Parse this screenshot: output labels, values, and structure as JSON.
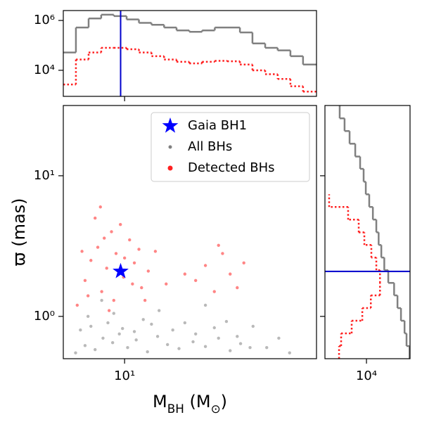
{
  "chart_data": [
    {
      "type": "scatter",
      "xlabel": "M_BH (M_⊙)",
      "ylabel": "ϖ (mas)",
      "xscale": "log",
      "yscale": "log",
      "xlim": [
        5.5,
        65
      ],
      "ylim": [
        0.5,
        31.6
      ],
      "xticks": [
        {
          "value": 10,
          "label": "10¹"
        }
      ],
      "yticks": [
        {
          "value": 1,
          "label": "10⁰"
        },
        {
          "value": 10,
          "label": "10¹"
        }
      ],
      "legend": "upper right",
      "series": [
        {
          "name": "Gaia BH1",
          "color": "#0000ff",
          "marker": "star",
          "x": [
            9.62
          ],
          "y": [
            2.09
          ]
        },
        {
          "name": "All BHs",
          "color": "#808080",
          "marker": "dot",
          "x": [
            6.2,
            6.8,
            7.5,
            8.1,
            8.9,
            9.5,
            10.3,
            11.2,
            12.5,
            13.8,
            15.2,
            17.0,
            19.5,
            22.0,
            25.0,
            28.0,
            31.0,
            34.0,
            6.5,
            7.2,
            8.5,
            9.8,
            11.0,
            13.0,
            16.0,
            20.0,
            24.0,
            30.0,
            40.0,
            50.0,
            7.0,
            9.0,
            12.0,
            18.0,
            27.0,
            45.0,
            8.0,
            14.0,
            22.0,
            35.0
          ],
          "y": [
            0.55,
            0.62,
            0.58,
            0.7,
            0.65,
            0.75,
            0.6,
            0.68,
            0.56,
            0.72,
            0.63,
            0.59,
            0.66,
            0.61,
            0.7,
            0.57,
            0.64,
            0.6,
            0.8,
            0.85,
            0.9,
            0.82,
            0.78,
            0.88,
            0.8,
            0.75,
            0.83,
            0.72,
            0.6,
            0.55,
            1.0,
            1.05,
            0.95,
            0.9,
            0.92,
            0.7,
            1.3,
            1.1,
            1.2,
            0.85
          ]
        },
        {
          "name": "Detected BHs",
          "color": "#ff2020",
          "marker": "dot",
          "x": [
            6.3,
            6.8,
            7.2,
            7.7,
            8.0,
            8.4,
            8.8,
            9.2,
            9.9,
            10.5,
            11.0,
            11.8,
            12.6,
            13.5,
            7.0,
            7.5,
            8.2,
            9.0,
            10.0,
            10.8,
            6.6,
            8.6,
            9.6,
            11.5,
            12.2,
            7.9,
            20,
            22,
            24,
            26,
            28,
            30,
            32,
            25,
            18,
            15
          ],
          "y": [
            1.2,
            1.8,
            2.5,
            3.1,
            1.5,
            2.2,
            4.0,
            2.8,
            1.9,
            3.5,
            2.4,
            1.6,
            2.1,
            2.9,
            1.4,
            5.0,
            3.6,
            1.3,
            2.6,
            1.7,
            2.9,
            1.1,
            4.5,
            3.0,
            1.3,
            6.0,
            1.8,
            2.3,
            1.5,
            2.8,
            2.0,
            1.6,
            2.4,
            3.2,
            2.0,
            1.7
          ]
        }
      ]
    },
    {
      "type": "histogram",
      "orientation": "vertical",
      "yscale": "log",
      "ylim": [
        900,
        2500000
      ],
      "yticks": [
        {
          "value": 10000,
          "label": "10⁴"
        },
        {
          "value": 1000000,
          "label": "10⁶"
        }
      ],
      "bins": [
        5.5,
        6.22,
        7.04,
        7.96,
        9.0,
        10.2,
        11.5,
        13.0,
        14.7,
        16.6,
        18.8,
        21.3,
        24.1,
        27.2,
        30.8,
        34.8,
        39.4,
        44.5,
        50.4,
        57.0,
        65
      ],
      "series": [
        {
          "color": "#808080",
          "linestyle": "solid",
          "values": [
            52000,
            520000,
            1200000,
            1700000,
            1500000,
            1100000,
            800000,
            670000,
            520000,
            400000,
            350000,
            400000,
            520000,
            520000,
            330000,
            120000,
            80000,
            63000,
            37000,
            17000
          ]
        },
        {
          "color": "#ff2020",
          "linestyle": "dotted",
          "values": [
            2700,
            27000,
            52000,
            80000,
            80000,
            70000,
            52000,
            37000,
            27000,
            22000,
            19000,
            22000,
            24000,
            23000,
            17000,
            10000,
            7000,
            4500,
            2300,
            1400
          ]
        }
      ]
    },
    {
      "type": "histogram",
      "orientation": "horizontal",
      "xscale": "log",
      "xlim": [
        4800,
        21600
      ],
      "xticks": [
        {
          "value": 10000,
          "label": "10⁴"
        }
      ],
      "bins": [
        0.5,
        0.615,
        0.757,
        0.931,
        1.145,
        1.41,
        1.73,
        2.13,
        2.62,
        3.22,
        3.96,
        4.88,
        6.0,
        7.38,
        9.07,
        11.2,
        13.7,
        16.9,
        20.8,
        25.6,
        31.6
      ],
      "series": [
        {
          "color": "#808080",
          "linestyle": "solid",
          "values": [
            21400,
            20300,
            19600,
            18400,
            17300,
            16300,
            14700,
            13700,
            13000,
            12400,
            11900,
            11200,
            10500,
            9880,
            9510,
            8940,
            8200,
            7420,
            6790,
            6230
          ]
        },
        {
          "color": "#ff2020",
          "linestyle": "dotted",
          "values": [
            6160,
            6390,
            7700,
            9290,
            10800,
            12700,
            12700,
            11900,
            10900,
            9630,
            8720,
            7230,
            5170,
            null,
            null,
            null,
            null,
            null,
            null,
            null
          ]
        }
      ]
    }
  ]
}
